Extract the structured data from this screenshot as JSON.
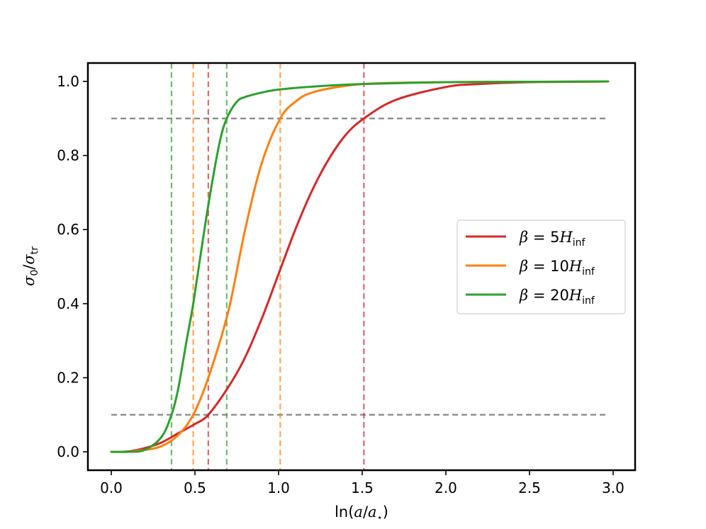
{
  "chart_data": {
    "type": "line",
    "title": "",
    "xlabel": "ln(a/a⋆)",
    "ylabel": "σ0/σtr",
    "xlim": [
      -0.13,
      3.13
    ],
    "ylim": [
      -0.05,
      1.05
    ],
    "xticks": [
      0.0,
      0.5,
      1.0,
      1.5,
      2.0,
      2.5,
      3.0
    ],
    "xtick_labels": [
      "0.0",
      "0.5",
      "1.0",
      "1.5",
      "2.0",
      "2.5",
      "3.0"
    ],
    "yticks": [
      0.0,
      0.2,
      0.4,
      0.6,
      0.8,
      1.0
    ],
    "ytick_labels": [
      "0.0",
      "0.2",
      "0.4",
      "0.6",
      "0.8",
      "1.0"
    ],
    "grid": false,
    "legend_position": "center-right",
    "series": [
      {
        "name": "β = 5H_inf",
        "beta": "5",
        "color": "#d62728",
        "x": [
          0.0,
          0.1,
          0.2,
          0.3,
          0.4,
          0.5,
          0.58,
          0.7,
          0.8,
          0.9,
          1.0,
          1.1,
          1.2,
          1.3,
          1.4,
          1.51,
          1.7,
          2.0,
          2.2,
          2.5,
          2.75,
          2.97
        ],
        "y": [
          0.0,
          0.001,
          0.01,
          0.025,
          0.05,
          0.075,
          0.1,
          0.175,
          0.255,
          0.36,
          0.48,
          0.6,
          0.705,
          0.79,
          0.855,
          0.9,
          0.95,
          0.985,
          0.993,
          0.998,
          0.999,
          1.0
        ]
      },
      {
        "name": "β = 10H_inf",
        "beta": "10",
        "color": "#ff7f0e",
        "x": [
          0.0,
          0.1,
          0.2,
          0.3,
          0.4,
          0.49,
          0.58,
          0.7,
          0.8,
          0.9,
          1.01,
          1.1,
          1.2,
          1.4,
          1.6,
          2.0,
          2.5,
          2.97
        ],
        "y": [
          0.0,
          0.0,
          0.005,
          0.015,
          0.045,
          0.1,
          0.2,
          0.38,
          0.6,
          0.78,
          0.9,
          0.945,
          0.97,
          0.988,
          0.995,
          0.998,
          0.999,
          1.0
        ]
      },
      {
        "name": "β = 20H_inf",
        "beta": "20",
        "color": "#2ca02c",
        "x": [
          0.0,
          0.1,
          0.2,
          0.3,
          0.36,
          0.4,
          0.45,
          0.49,
          0.55,
          0.6,
          0.65,
          0.69,
          0.75,
          0.8,
          0.9,
          1.0,
          1.2,
          1.5,
          2.0,
          2.5,
          2.97
        ],
        "y": [
          0.0,
          0.0,
          0.005,
          0.04,
          0.1,
          0.17,
          0.3,
          0.4,
          0.58,
          0.72,
          0.84,
          0.9,
          0.945,
          0.958,
          0.97,
          0.978,
          0.986,
          0.993,
          0.998,
          0.999,
          1.0
        ]
      }
    ],
    "reference_lines": {
      "horizontal": [
        {
          "y": 0.9,
          "color": "#808080"
        },
        {
          "y": 0.1,
          "color": "#808080"
        }
      ],
      "vertical": [
        {
          "x": 0.36,
          "color": "#2ca02c"
        },
        {
          "x": 0.49,
          "color": "#ff7f0e"
        },
        {
          "x": 0.58,
          "color": "#d62728"
        },
        {
          "x": 0.69,
          "color": "#2ca02c"
        },
        {
          "x": 1.01,
          "color": "#ff7f0e"
        },
        {
          "x": 1.51,
          "color": "#d62728"
        }
      ]
    }
  }
}
